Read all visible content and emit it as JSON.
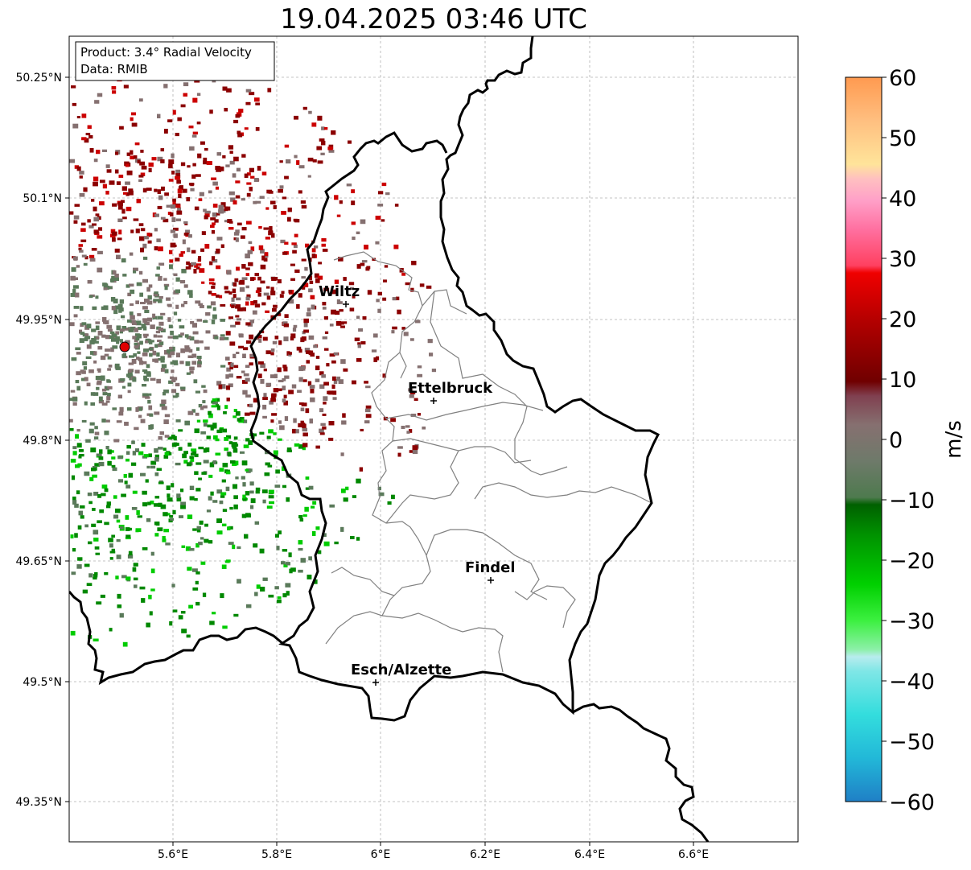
{
  "title": "19.04.2025 03:46 UTC",
  "info": {
    "product": "Product: 3.4° Radial Velocity",
    "data": "Data: RMIB"
  },
  "axes": {
    "lat_ticks": [
      "50.25°N",
      "50.1°N",
      "49.95°N",
      "49.8°N",
      "49.65°N",
      "49.5°N",
      "49.35°N"
    ],
    "lon_ticks": [
      "5.6°E",
      "5.8°E",
      "6°E",
      "6.2°E",
      "6.4°E",
      "6.6°E"
    ]
  },
  "cities": [
    {
      "name": "Wiltz"
    },
    {
      "name": "Ettelbruck"
    },
    {
      "name": "Findel"
    },
    {
      "name": "Esch/Alzette"
    }
  ],
  "colorbar": {
    "unit": "m/s",
    "ticks": [
      "60",
      "50",
      "40",
      "30",
      "20",
      "10",
      "0",
      "−10",
      "−20",
      "−30",
      "−40",
      "−50",
      "−60"
    ],
    "range": [
      -60,
      60
    ]
  },
  "colors": {
    "incoming_strong": "#00cc00",
    "incoming": "#008800",
    "near_zero_green": "#5a7a5a",
    "near_zero_gray": "#857070",
    "outgoing": "#8b0000",
    "outgoing_strong": "#cc0000",
    "radar_site": "#e00000"
  }
}
